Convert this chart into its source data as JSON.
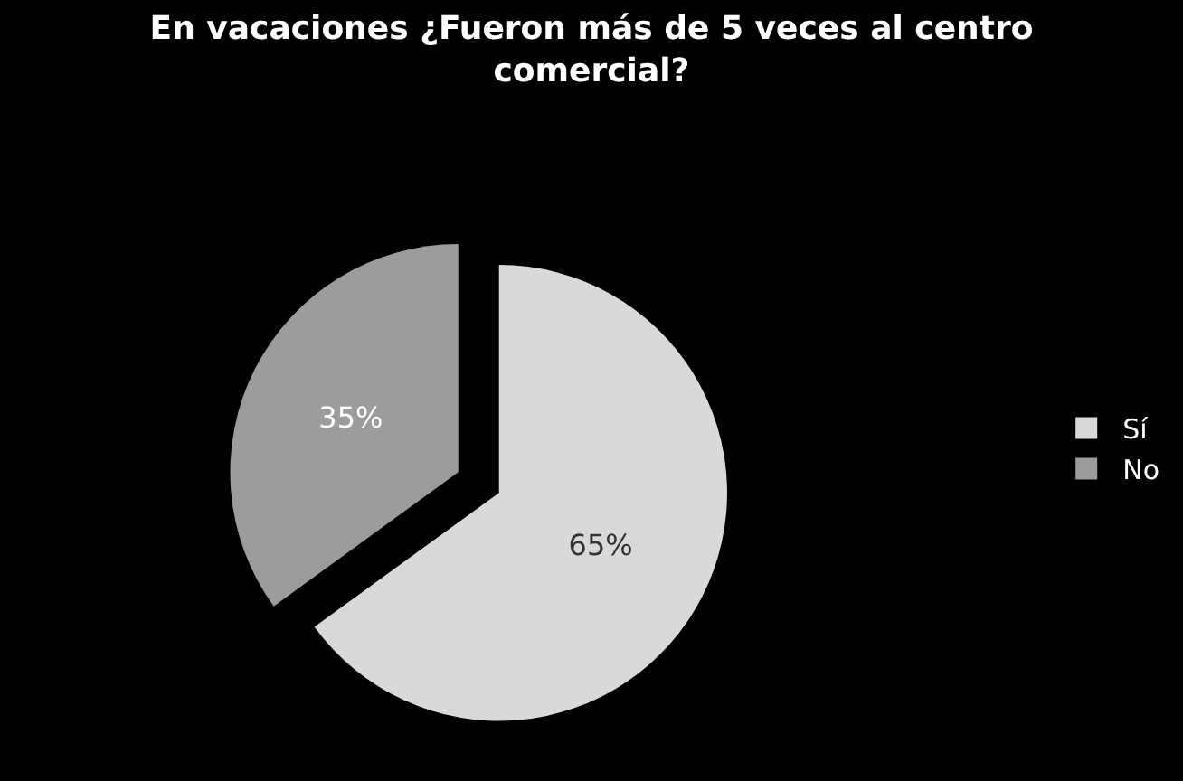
{
  "chart_data": {
    "type": "pie",
    "title": "En vacaciones ¿Fueron más de 5 veces al centro comercial?",
    "categories": [
      "Sí",
      "No"
    ],
    "values": [
      65,
      35
    ],
    "colors": [
      "#d9d9d9",
      "#9c9c9c"
    ],
    "value_labels": [
      "65%",
      "35%"
    ],
    "legend": "right"
  }
}
